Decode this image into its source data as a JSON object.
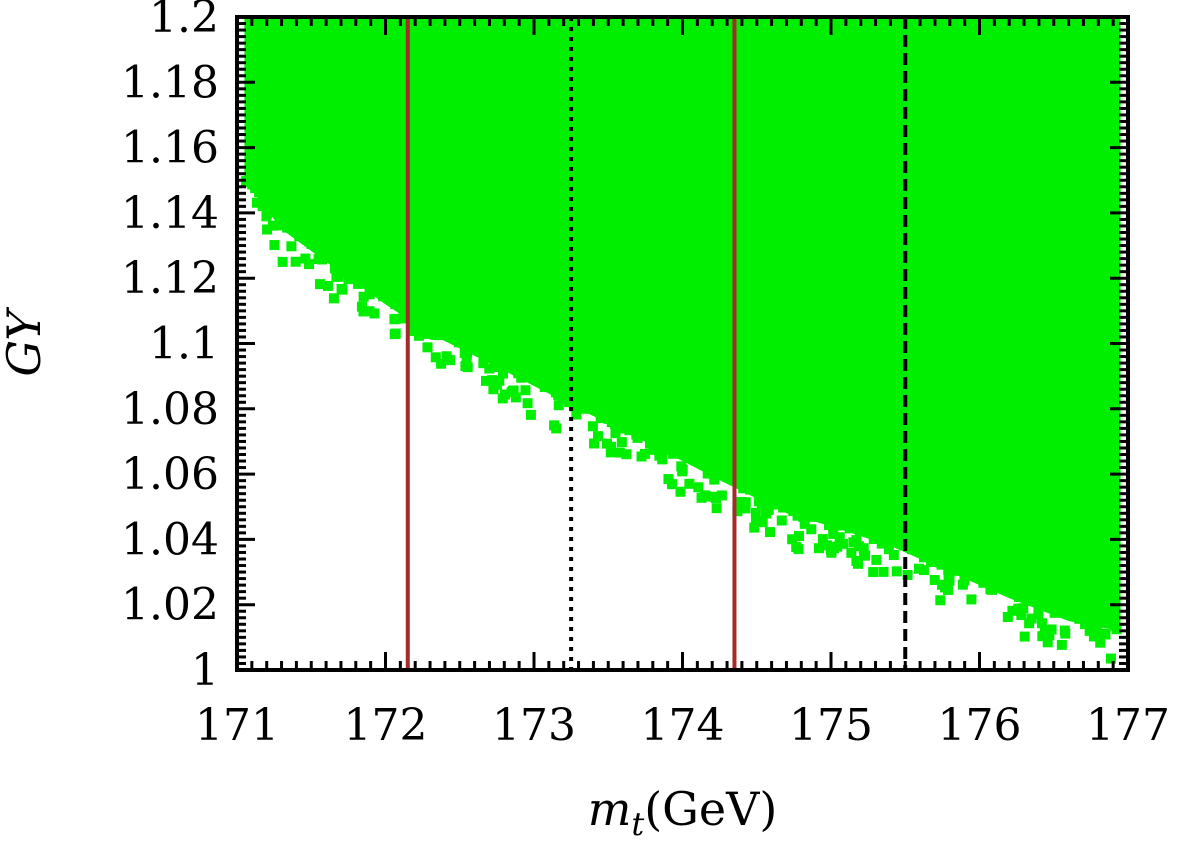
{
  "chart_data": {
    "type": "scatter",
    "title": "",
    "xlabel_main": "m",
    "xlabel_sub": "t",
    "xlabel_unit": "(GeV)",
    "ylabel": "GY",
    "xlim": [
      171,
      177
    ],
    "ylim": [
      1.0,
      1.2
    ],
    "x_ticks": [
      "171",
      "172",
      "173",
      "174",
      "175",
      "176",
      "177"
    ],
    "y_ticks": [
      "1",
      "1.02",
      "1.04",
      "1.06",
      "1.08",
      "1.1",
      "1.12",
      "1.14",
      "1.16",
      "1.18",
      "1.2"
    ],
    "point_color": "#00ee00",
    "allowed_region_lower_boundary": {
      "x": [
        171.05,
        171.3,
        171.6,
        172.0,
        172.3,
        172.7,
        173.0,
        173.3,
        173.7,
        174.0,
        174.3,
        174.7,
        175.0,
        175.4,
        175.8,
        176.2,
        176.6,
        176.95
      ],
      "y": [
        1.15,
        1.135,
        1.125,
        1.112,
        1.103,
        1.094,
        1.087,
        1.08,
        1.071,
        1.064,
        1.057,
        1.048,
        1.044,
        1.038,
        1.03,
        1.022,
        1.015,
        1.012
      ]
    },
    "vertical_lines": [
      {
        "x": 172.15,
        "style": "solid",
        "color": "#a52a2a"
      },
      {
        "x": 174.35,
        "style": "solid",
        "color": "#a52a2a"
      },
      {
        "x": 173.25,
        "style": "dotted",
        "color": "#000000"
      },
      {
        "x": 175.5,
        "style": "dashed",
        "color": "#000000"
      }
    ]
  }
}
